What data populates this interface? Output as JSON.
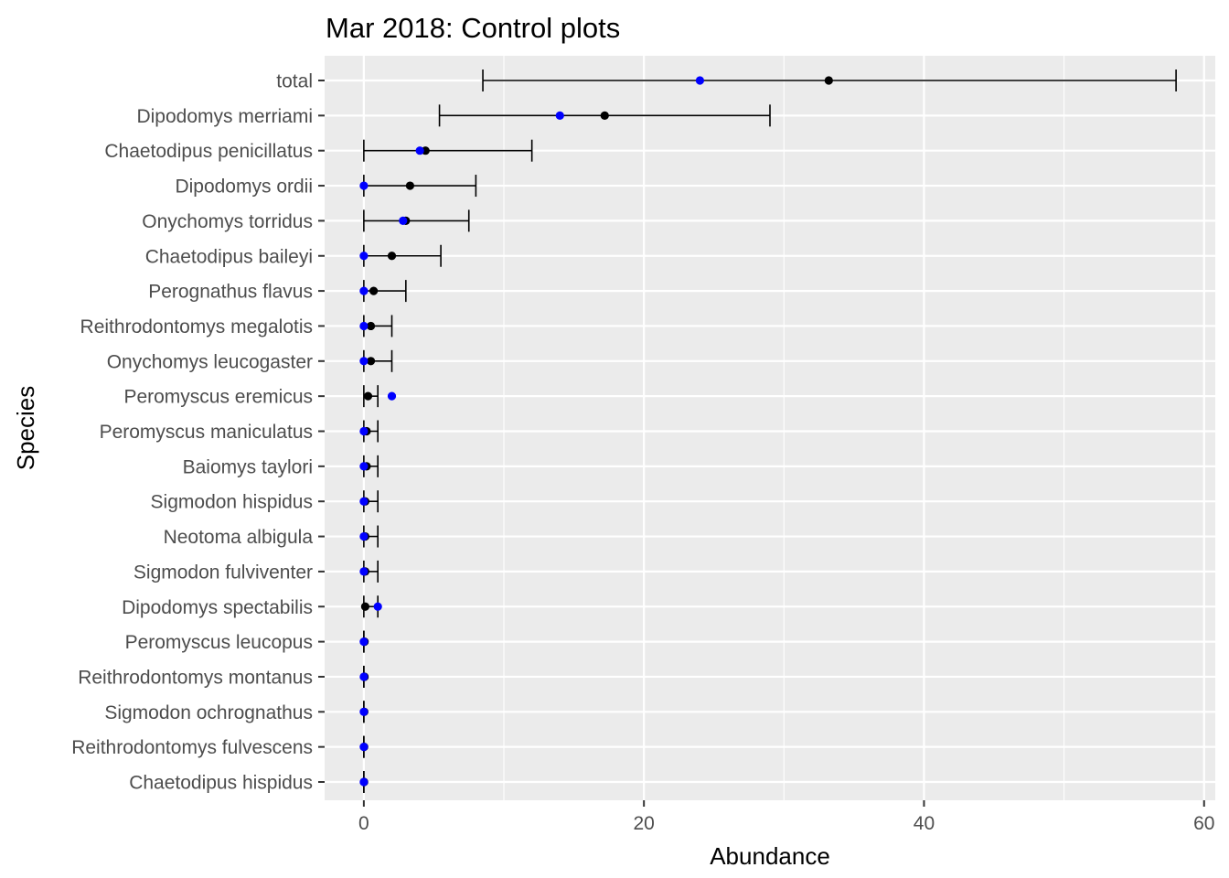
{
  "chart_data": {
    "type": "scatter",
    "title": "Mar 2018: Control plots",
    "xlabel": "Abundance",
    "ylabel": "Species",
    "xlim": [
      -2.8,
      60.8
    ],
    "x_ticks": [
      0,
      20,
      40,
      60
    ],
    "grid": true,
    "legend": "none",
    "colors": {
      "panel": "#ebebeb",
      "grid": "#ffffff",
      "estimate": "#000000",
      "observed": "#0000ff",
      "errorbar": "#000000",
      "tick_text": "#4d4d4d"
    },
    "categories": [
      "total",
      "Dipodomys merriami",
      "Chaetodipus penicillatus",
      "Dipodomys ordii",
      "Onychomys torridus",
      "Chaetodipus baileyi",
      "Perognathus flavus",
      "Reithrodontomys megalotis",
      "Onychomys leucogaster",
      "Peromyscus eremicus",
      "Peromyscus maniculatus",
      "Baiomys taylori",
      "Sigmodon hispidus",
      "Neotoma albigula",
      "Sigmodon fulviventer",
      "Dipodomys spectabilis",
      "Peromyscus leucopus",
      "Reithrodontomys montanus",
      "Sigmodon ochrognathus",
      "Reithrodontomys fulvescens",
      "Chaetodipus hispidus"
    ],
    "series": [
      {
        "values": [
          33.2,
          17.2,
          4.4,
          3.3,
          3.0,
          2.0,
          0.7,
          0.5,
          0.5,
          0.3,
          0.2,
          0.2,
          0.1,
          0.1,
          0.1,
          0.1,
          0.05,
          0.05,
          0.03,
          0.02,
          0.02
        ]
      },
      {
        "values": [
          24.0,
          14.0,
          4.0,
          0.0,
          2.8,
          0.0,
          0.0,
          0.0,
          0.0,
          2.0,
          0.0,
          0.0,
          0.0,
          0.0,
          0.0,
          1.0,
          0.0,
          0.0,
          0.0,
          0.0,
          0.0
        ]
      }
    ],
    "intervals": {
      "lower": [
        8.5,
        5.4,
        0,
        0,
        0,
        0,
        0,
        0,
        0,
        0,
        0,
        0,
        0,
        0,
        0,
        0,
        0,
        0,
        0,
        0,
        0
      ],
      "upper": [
        58,
        29,
        12,
        8,
        7.5,
        5.5,
        3,
        2,
        2,
        1,
        1,
        1,
        1,
        1,
        1,
        1,
        0,
        0,
        0,
        0,
        0
      ]
    }
  }
}
